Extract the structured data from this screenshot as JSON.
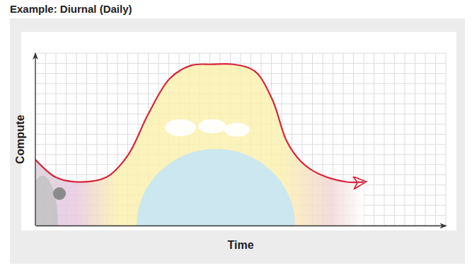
{
  "chart_data": {
    "type": "line",
    "title": "Example: Diurnal (Daily)",
    "xlabel": "Time",
    "ylabel": "Compute",
    "x": [
      0,
      2,
      4.1,
      6.9,
      9,
      11,
      13.1,
      15.2,
      17.2,
      19.3,
      21.4,
      23.1,
      24.5,
      25.9,
      27.6,
      30.3,
      32
    ],
    "values": [
      6.5,
      4.75,
      4.3,
      4.75,
      6.9,
      11,
      14.5,
      15.8,
      15.9,
      15.9,
      15.2,
      12.4,
      8.3,
      6.3,
      5.1,
      4.3,
      4.3
    ],
    "color": "#d7263d",
    "xlim": [
      0,
      40
    ],
    "ylim": [
      0,
      17
    ],
    "xticks": [
      0,
      1,
      2,
      3,
      4,
      5,
      6,
      7,
      8,
      9,
      10,
      11,
      12,
      13,
      14,
      15,
      16,
      17,
      18,
      19,
      20,
      21,
      22,
      23,
      24,
      25,
      26,
      27,
      28,
      29,
      30,
      31,
      32,
      33,
      34,
      35,
      36,
      37,
      38,
      39,
      40
    ],
    "yticks": [
      0,
      1,
      2,
      3,
      4,
      5,
      6,
      7,
      8,
      9,
      10,
      11,
      12,
      13,
      14,
      15,
      16,
      17
    ],
    "grid": true,
    "tick_labels": false,
    "line_style": "solid",
    "marker": "none"
  }
}
